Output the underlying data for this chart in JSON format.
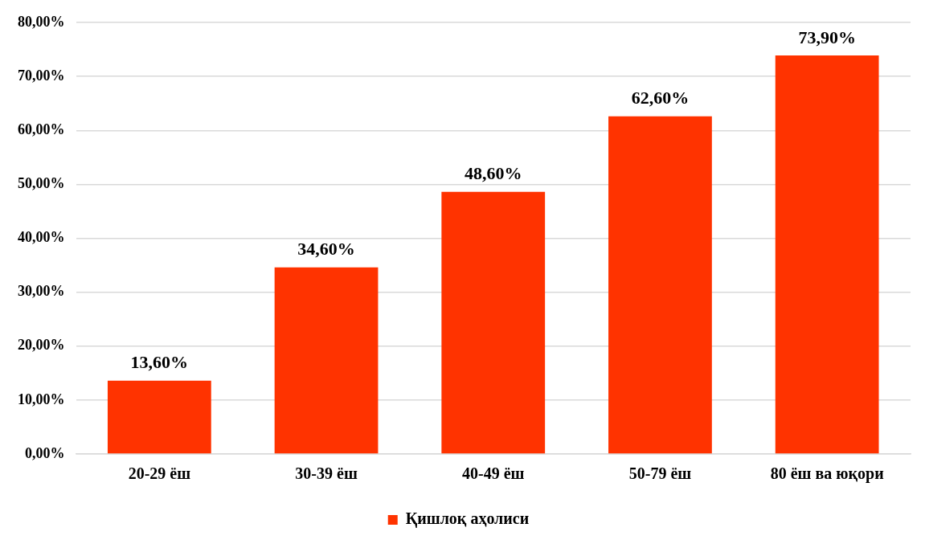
{
  "chart_data": {
    "type": "bar",
    "categories": [
      "20-29 ёш",
      "30-39 ёш",
      "40-49 ёш",
      "50-79 ёш",
      "80 ёш ва юқори"
    ],
    "series": [
      {
        "name": "Қишлоқ аҳолиси",
        "color": "#ff3300",
        "values": [
          13.6,
          34.6,
          48.6,
          62.6,
          73.9
        ],
        "value_labels": [
          "13,60%",
          "34,60%",
          "48,60%",
          "62,60%",
          "73,90%"
        ]
      }
    ],
    "ylim": [
      0,
      80
    ],
    "yticks": [
      {
        "value": 0,
        "label": "0,00%"
      },
      {
        "value": 10,
        "label": "10,00%"
      },
      {
        "value": 20,
        "label": "20,00%"
      },
      {
        "value": 30,
        "label": "30,00%"
      },
      {
        "value": 40,
        "label": "40,00%"
      },
      {
        "value": 50,
        "label": "50,00%"
      },
      {
        "value": 60,
        "label": "60,00%"
      },
      {
        "value": 70,
        "label": "70,00%"
      },
      {
        "value": 80,
        "label": "80,00%"
      }
    ],
    "grid": "y",
    "legend": "bottom"
  }
}
